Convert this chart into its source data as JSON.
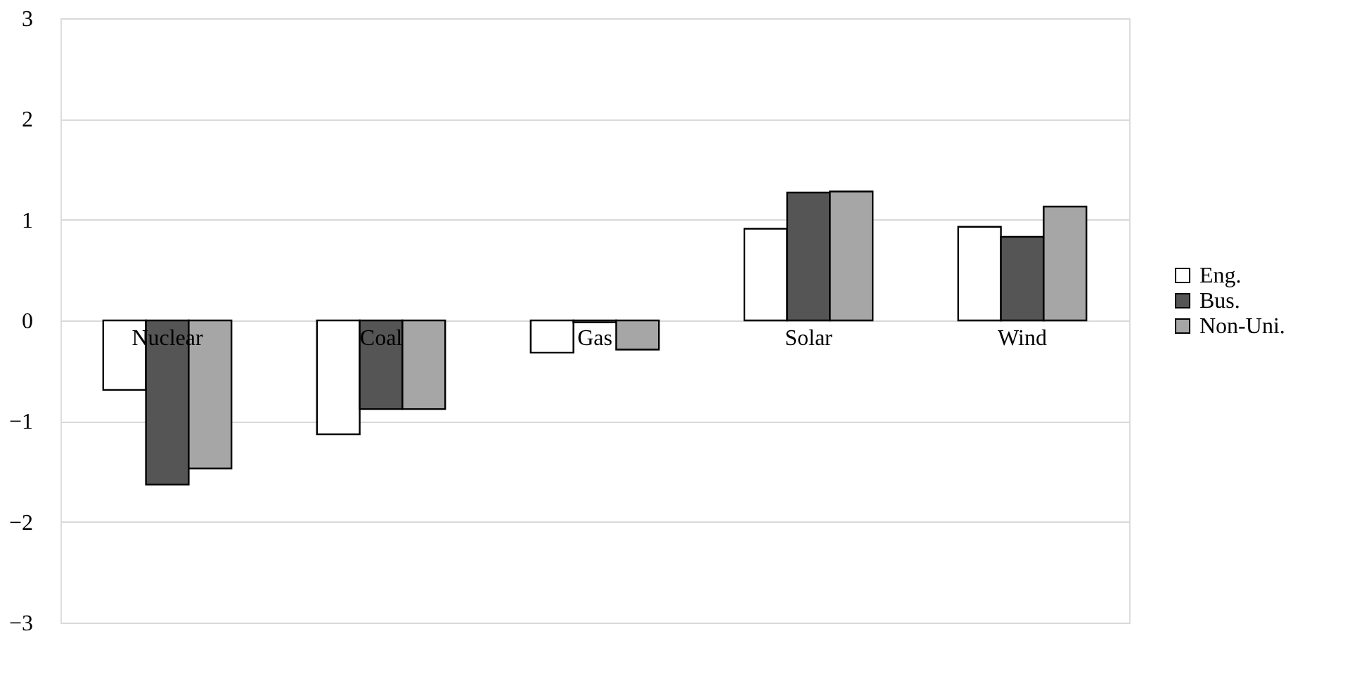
{
  "chart_data": {
    "type": "bar",
    "categories": [
      "Nuclear",
      "Coal",
      "Gas",
      "Solar",
      "Wind"
    ],
    "series": [
      {
        "name": "Eng.",
        "color": "#ffffff",
        "values": [
          -0.69,
          -1.13,
          -0.32,
          0.91,
          0.93
        ]
      },
      {
        "name": "Bus.",
        "color": "#555555",
        "values": [
          -1.63,
          -0.88,
          -0.02,
          1.27,
          0.83
        ]
      },
      {
        "name": "Non-Uni.",
        "color": "#a6a6a6",
        "values": [
          -1.47,
          -0.88,
          -0.29,
          1.28,
          1.13
        ]
      }
    ],
    "ylim": [
      -3,
      3
    ],
    "yticks": [
      -3,
      -2,
      -1,
      0,
      1,
      2,
      3
    ],
    "grid": "y",
    "legend": "right"
  }
}
